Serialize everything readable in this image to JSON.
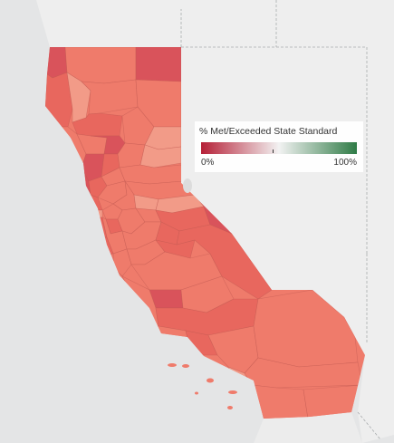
{
  "map": {
    "region": "California counties",
    "basemap_color": "#e4e5e6",
    "land_color": "#efefef",
    "border_color": "#c05a52",
    "county_colors": {
      "dark": "#d9535b",
      "mid": "#e8675e",
      "base": "#ef7b6b",
      "light": "#f29b88",
      "pale": "#f5b29f"
    }
  },
  "legend": {
    "title": "% Met/Exceeded State Standard",
    "min_label": "0%",
    "max_label": "100%",
    "scale_min": 0,
    "scale_mid": 50,
    "scale_max": 100,
    "colors": {
      "low": "#b51f36",
      "mid": "#f2f2f2",
      "high": "#2f7b46"
    }
  }
}
